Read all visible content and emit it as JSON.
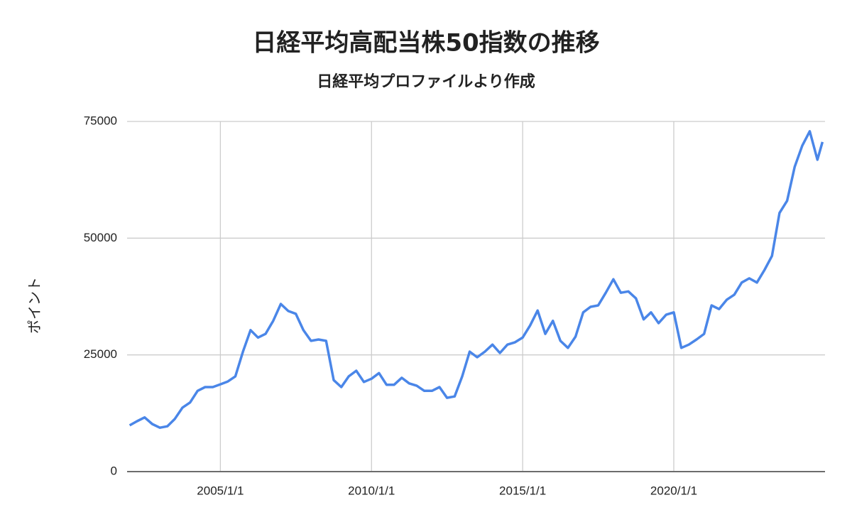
{
  "chart_data": {
    "type": "line",
    "title": "日経平均高配当株50指数の推移",
    "subtitle": "日経平均プロファイルより作成",
    "y_label": "ポイント",
    "x": [
      "2002/1/1",
      "2002/4/1",
      "2002/7/1",
      "2002/10/1",
      "2003/1/1",
      "2003/4/1",
      "2003/7/1",
      "2003/10/1",
      "2004/1/1",
      "2004/4/1",
      "2004/7/1",
      "2004/10/1",
      "2005/1/1",
      "2005/4/1",
      "2005/7/1",
      "2005/10/1",
      "2006/1/1",
      "2006/4/1",
      "2006/7/1",
      "2006/10/1",
      "2007/1/1",
      "2007/4/1",
      "2007/7/1",
      "2007/10/1",
      "2008/1/1",
      "2008/4/1",
      "2008/7/1",
      "2008/10/1",
      "2009/1/1",
      "2009/4/1",
      "2009/7/1",
      "2009/10/1",
      "2010/1/1",
      "2010/4/1",
      "2010/7/1",
      "2010/10/1",
      "2011/1/1",
      "2011/4/1",
      "2011/7/1",
      "2011/10/1",
      "2012/1/1",
      "2012/4/1",
      "2012/7/1",
      "2012/10/1",
      "2013/1/1",
      "2013/4/1",
      "2013/7/1",
      "2013/10/1",
      "2014/1/1",
      "2014/4/1",
      "2014/7/1",
      "2014/10/1",
      "2015/1/1",
      "2015/4/1",
      "2015/7/1",
      "2015/10/1",
      "2016/1/1",
      "2016/4/1",
      "2016/7/1",
      "2016/10/1",
      "2017/1/1",
      "2017/4/1",
      "2017/7/1",
      "2017/10/1",
      "2018/1/1",
      "2018/4/1",
      "2018/7/1",
      "2018/10/1",
      "2019/1/1",
      "2019/4/1",
      "2019/7/1",
      "2019/10/1",
      "2020/1/1",
      "2020/4/1",
      "2020/7/1",
      "2020/10/1",
      "2021/1/1",
      "2021/4/1",
      "2021/7/1",
      "2021/10/1",
      "2022/1/1",
      "2022/4/1",
      "2022/7/1",
      "2022/10/1",
      "2023/1/1",
      "2023/4/1",
      "2023/7/1",
      "2023/10/1",
      "2024/1/1",
      "2024/4/1",
      "2024/7/1",
      "2024/10/1",
      "2024/12/1"
    ],
    "series": [
      {
        "name": "日経平均高配当株50指数",
        "color": "#4a86e8",
        "values": [
          9900,
          10800,
          11600,
          10200,
          9400,
          9700,
          11300,
          13700,
          14800,
          17300,
          18100,
          18100,
          18700,
          19300,
          20400,
          25700,
          30300,
          28700,
          29500,
          32300,
          35900,
          34400,
          33800,
          30300,
          28000,
          28300,
          28000,
          19600,
          18100,
          20400,
          21600,
          19200,
          19900,
          21100,
          18600,
          18600,
          20100,
          18900,
          18400,
          17300,
          17300,
          18100,
          15800,
          16100,
          20400,
          25700,
          24500,
          25700,
          27200,
          25400,
          27200,
          27700,
          28700,
          31300,
          34500,
          29500,
          32300,
          28000,
          26500,
          28900,
          34100,
          35300,
          35600,
          38300,
          41200,
          38300,
          38600,
          37100,
          32600,
          34100,
          31800,
          33600,
          34100,
          26500,
          27200,
          28300,
          29500,
          35600,
          34800,
          36800,
          37900,
          40500,
          41400,
          40500,
          43200,
          46200,
          55400,
          58000,
          65300,
          69800,
          72900,
          66800,
          70600
        ]
      }
    ],
    "xlim": [
      "2001/12/1",
      "2025/1/1"
    ],
    "xticks": [
      "2005/1/1",
      "2010/1/1",
      "2015/1/1",
      "2020/1/1"
    ],
    "ylim": [
      0,
      75000
    ],
    "yticks": [
      0,
      25000,
      50000,
      75000
    ],
    "grid": true
  }
}
